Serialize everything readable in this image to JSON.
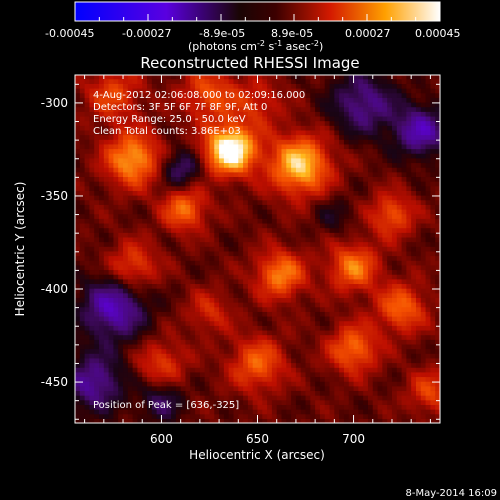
{
  "colorbar": {
    "ticks": [
      "-0.00045",
      "-0.00027",
      "-8.9e-05",
      "8.9e-05",
      "0.00027",
      "0.00045"
    ],
    "units_main": "(photons cm",
    "units_sup1": "-2",
    "units_mid": " s",
    "units_sup2": "-1",
    "units_end": " asec",
    "units_sup3": "-2",
    "units_close": ")"
  },
  "chart_data": {
    "type": "heatmap",
    "title": "Reconstructed RHESSI Image",
    "xlabel": "Heliocentric X (arcsec)",
    "ylabel": "Heliocentric Y (arcsec)",
    "xlim": [
      555,
      745
    ],
    "ylim": [
      -472,
      -285
    ],
    "xticks": [
      "600",
      "650",
      "700"
    ],
    "xtick_values": [
      600,
      650,
      700
    ],
    "yticks": [
      "-300",
      "-350",
      "-400",
      "-450"
    ],
    "ytick_values": [
      -300,
      -350,
      -400,
      -450
    ],
    "color_range": [
      -0.00045,
      0.00045
    ],
    "colormap": "blue-purple-red-yellow-white",
    "annotations": [
      "4-Aug-2012 02:06:08.000 to 02:09:16.000",
      "Detectors: 3F 5F 6F 7F 8F 9F, Att 0",
      "Energy Range: 25.0 - 50.0 keV",
      "Clean    Total counts: 3.86E+03"
    ],
    "peak_label": "Position of Peak = [636,-325]",
    "peak": [
      636,
      -325
    ],
    "sources": [
      {
        "x": 636,
        "y": -325,
        "r": 9,
        "v": 0.00045
      },
      {
        "x": 585,
        "y": -330,
        "r": 10,
        "v": 0.00028
      },
      {
        "x": 672,
        "y": -333,
        "r": 11,
        "v": 0.00033
      },
      {
        "x": 612,
        "y": -357,
        "r": 8,
        "v": 0.00022
      },
      {
        "x": 585,
        "y": -388,
        "r": 9,
        "v": 0.00018
      },
      {
        "x": 662,
        "y": -392,
        "r": 9,
        "v": 0.00024
      },
      {
        "x": 700,
        "y": -388,
        "r": 9,
        "v": 0.00023
      },
      {
        "x": 725,
        "y": -410,
        "r": 9,
        "v": 0.00021
      },
      {
        "x": 700,
        "y": -432,
        "r": 9,
        "v": 0.00022
      },
      {
        "x": 720,
        "y": -360,
        "r": 8,
        "v": 0.00019
      },
      {
        "x": 650,
        "y": -440,
        "r": 10,
        "v": 0.0002
      },
      {
        "x": 600,
        "y": -440,
        "r": 9,
        "v": 0.00015
      },
      {
        "x": 740,
        "y": -455,
        "r": 8,
        "v": 0.00016
      },
      {
        "x": 575,
        "y": -295,
        "r": 10,
        "v": 0.00016
      },
      {
        "x": 625,
        "y": -295,
        "r": 10,
        "v": 0.00018
      },
      {
        "x": 625,
        "y": -412,
        "r": 8,
        "v": 0.00012
      },
      {
        "x": 575,
        "y": -410,
        "r": 12,
        "v": -0.00026
      },
      {
        "x": 565,
        "y": -450,
        "r": 11,
        "v": -0.00022
      },
      {
        "x": 600,
        "y": -460,
        "r": 8,
        "v": -0.00015
      },
      {
        "x": 705,
        "y": -300,
        "r": 12,
        "v": -0.0002
      },
      {
        "x": 735,
        "y": -315,
        "r": 10,
        "v": -0.00024
      },
      {
        "x": 610,
        "y": -335,
        "r": 7,
        "v": -0.00018
      },
      {
        "x": 650,
        "y": -300,
        "r": 9,
        "v": 0.00012
      },
      {
        "x": 690,
        "y": -360,
        "r": 7,
        "v": -8e-05
      }
    ]
  },
  "footer": {
    "timestamp": "8-May-2014 16:09"
  }
}
